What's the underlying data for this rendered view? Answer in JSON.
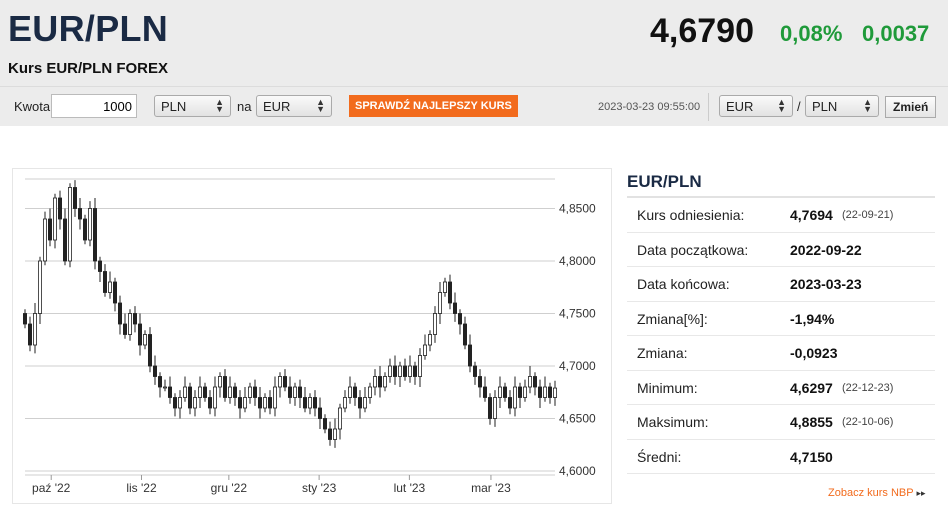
{
  "header": {
    "pair": "EUR/PLN",
    "subtitle": "Kurs EUR/PLN FOREX",
    "rate": "4,6790",
    "change_pct": "0,08%",
    "change_abs": "0,0037",
    "accent_green": "#1f9a3a"
  },
  "converter": {
    "amount_label": "Kwota",
    "amount_value": "1000",
    "from_currency": "PLN",
    "na_label": "na",
    "to_currency": "EUR",
    "best_rate_button": "SPRAWDŹ NAJLEPSZY KURS",
    "button_color": "#f26b1d",
    "timestamp": "2023-03-23 09:55:00",
    "pair_base": "EUR",
    "slash": "/",
    "pair_quote": "PLN",
    "change_button": "Zmień"
  },
  "chart_data": {
    "type": "candlestick",
    "ylim": [
      4.6,
      4.88
    ],
    "y_ticks": [
      "4,8500",
      "4,8000",
      "4,7500",
      "4,7000",
      "4,6500",
      "4,6000"
    ],
    "y_tick_values": [
      4.85,
      4.8,
      4.75,
      4.7,
      4.65,
      4.6
    ],
    "x_ticks": [
      "paź '22",
      "lis '22",
      "gru '22",
      "sty '23",
      "lut '23",
      "mar '23"
    ],
    "x_tick_days": [
      9,
      40,
      70,
      101,
      132,
      160
    ],
    "x_range_days": [
      0,
      182
    ],
    "closes": [
      4.74,
      4.72,
      4.75,
      4.8,
      4.84,
      4.82,
      4.86,
      4.84,
      4.8,
      4.87,
      4.85,
      4.84,
      4.82,
      4.85,
      4.8,
      4.79,
      4.77,
      4.78,
      4.76,
      4.74,
      4.73,
      4.75,
      4.74,
      4.72,
      4.73,
      4.7,
      4.69,
      4.68,
      4.68,
      4.67,
      4.66,
      4.67,
      4.68,
      4.66,
      4.67,
      4.68,
      4.67,
      4.66,
      4.68,
      4.69,
      4.67,
      4.68,
      4.67,
      4.66,
      4.67,
      4.68,
      4.67,
      4.66,
      4.67,
      4.66,
      4.68,
      4.69,
      4.68,
      4.67,
      4.68,
      4.67,
      4.66,
      4.67,
      4.66,
      4.65,
      4.64,
      4.63,
      4.64,
      4.66,
      4.67,
      4.68,
      4.67,
      4.66,
      4.67,
      4.68,
      4.69,
      4.68,
      4.69,
      4.7,
      4.69,
      4.7,
      4.69,
      4.7,
      4.69,
      4.71,
      4.72,
      4.73,
      4.75,
      4.77,
      4.78,
      4.76,
      4.75,
      4.74,
      4.72,
      4.7,
      4.69,
      4.68,
      4.67,
      4.65,
      4.67,
      4.68,
      4.67,
      4.66,
      4.68,
      4.67,
      4.68,
      4.69,
      4.68,
      4.67,
      4.68,
      4.67,
      4.679
    ]
  },
  "info": {
    "title": "EUR/PLN",
    "rows": [
      {
        "label": "Kurs odniesienia:",
        "value": "4,7694",
        "date": "(22-09-21)"
      },
      {
        "label": "Data początkowa:",
        "value": "2022-09-22",
        "date": ""
      },
      {
        "label": "Data końcowa:",
        "value": "2023-03-23",
        "date": ""
      },
      {
        "label": "Zmiana[%]:",
        "value": "-1,94%",
        "date": ""
      },
      {
        "label": "Zmiana:",
        "value": "-0,0923",
        "date": ""
      },
      {
        "label": "Minimum:",
        "value": "4,6297",
        "date": "(22-12-23)"
      },
      {
        "label": "Maksimum:",
        "value": "4,8855",
        "date": "(22-10-06)"
      },
      {
        "label": "Średni:",
        "value": "4,7150",
        "date": ""
      }
    ],
    "nbp_link": "Zobacz kurs NBP",
    "nbp_arrow": "▸▸"
  }
}
